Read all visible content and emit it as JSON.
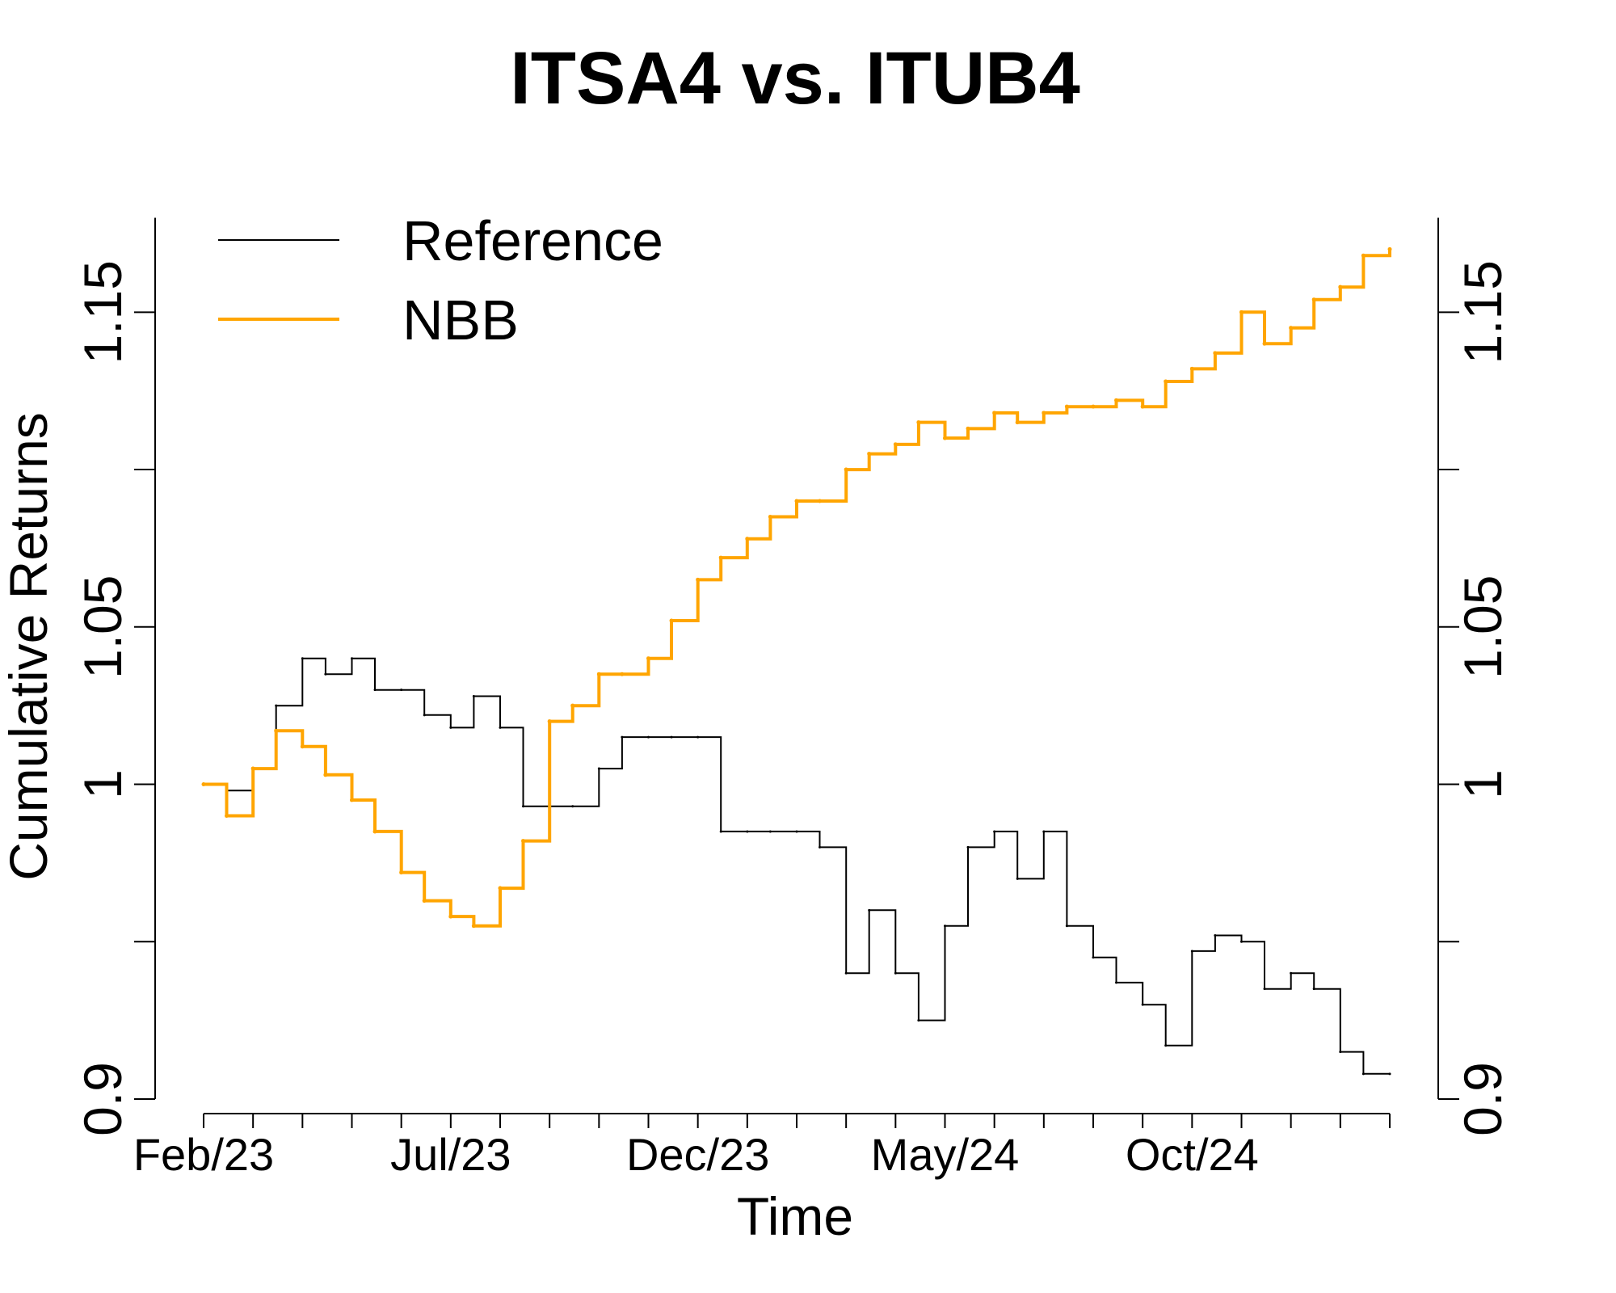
{
  "chart_data": {
    "type": "line",
    "title": "ITSA4 vs. ITUB4",
    "xlabel": "Time",
    "ylabel": "Cumulative Returns",
    "ylim": [
      0.9,
      1.185
    ],
    "y_ticks": [
      "0.9",
      "1",
      "1.05",
      "1.15"
    ],
    "y_tick_values": [
      0.9,
      1.0,
      1.05,
      1.15
    ],
    "y_minor_tick_values": [
      0.95,
      1.1
    ],
    "x_tick_labels": [
      "Feb/23",
      "Jul/23",
      "Dec/23",
      "May/24",
      "Oct/24"
    ],
    "x_tick_label_dates": [
      "2023-02",
      "2023-07",
      "2023-12",
      "2024-05",
      "2024-10"
    ],
    "x_tick_marks": [
      "2023-02",
      "2023-03",
      "2023-04",
      "2023-05",
      "2023-06",
      "2023-07",
      "2023-08",
      "2023-09",
      "2023-10",
      "2023-11",
      "2023-12",
      "2024-01",
      "2024-02",
      "2024-03",
      "2024-04",
      "2024-05",
      "2024-06",
      "2024-07",
      "2024-08",
      "2024-09",
      "2024-10",
      "2024-11",
      "2024-12",
      "2025-01",
      "2025-02"
    ],
    "legend": {
      "position": "top-left",
      "entries": [
        "Reference",
        "NBB"
      ]
    },
    "grid": false,
    "series": [
      {
        "name": "Reference",
        "color": "#000000",
        "x": [
          "2023-02",
          "2023-02-15",
          "2023-03",
          "2023-03-15",
          "2023-04",
          "2023-04-15",
          "2023-05",
          "2023-05-15",
          "2023-06",
          "2023-06-15",
          "2023-07",
          "2023-07-15",
          "2023-08",
          "2023-08-15",
          "2023-09",
          "2023-09-15",
          "2023-10",
          "2023-10-15",
          "2023-11",
          "2023-11-15",
          "2023-12",
          "2023-12-15",
          "2024-01",
          "2024-01-15",
          "2024-02",
          "2024-02-15",
          "2024-03",
          "2024-03-15",
          "2024-04",
          "2024-04-15",
          "2024-05",
          "2024-05-15",
          "2024-06",
          "2024-06-15",
          "2024-07",
          "2024-07-15",
          "2024-08",
          "2024-08-15",
          "2024-09",
          "2024-09-15",
          "2024-10",
          "2024-10-15",
          "2024-11",
          "2024-11-15",
          "2024-12",
          "2024-12-15",
          "2025-01",
          "2025-01-15",
          "2025-02"
        ],
        "values": [
          1.0,
          0.998,
          1.005,
          1.025,
          1.04,
          1.035,
          1.04,
          1.03,
          1.03,
          1.022,
          1.018,
          1.028,
          1.018,
          0.993,
          0.993,
          0.993,
          1.005,
          1.015,
          1.015,
          1.015,
          1.015,
          0.985,
          0.985,
          0.985,
          0.985,
          0.98,
          0.94,
          0.96,
          0.94,
          0.925,
          0.955,
          0.98,
          0.985,
          0.97,
          0.985,
          0.955,
          0.945,
          0.937,
          0.93,
          0.917,
          0.947,
          0.952,
          0.95,
          0.935,
          0.94,
          0.935,
          0.915,
          0.908,
          0.908
        ]
      },
      {
        "name": "NBB",
        "color": "#FFA500",
        "x": [
          "2023-02",
          "2023-02-15",
          "2023-03",
          "2023-03-15",
          "2023-04",
          "2023-04-15",
          "2023-05",
          "2023-05-15",
          "2023-06",
          "2023-06-15",
          "2023-07",
          "2023-07-15",
          "2023-08",
          "2023-08-15",
          "2023-09",
          "2023-09-15",
          "2023-10",
          "2023-10-15",
          "2023-11",
          "2023-11-15",
          "2023-12",
          "2023-12-15",
          "2024-01",
          "2024-01-15",
          "2024-02",
          "2024-02-15",
          "2024-03",
          "2024-03-15",
          "2024-04",
          "2024-04-15",
          "2024-05",
          "2024-05-15",
          "2024-06",
          "2024-06-15",
          "2024-07",
          "2024-07-15",
          "2024-08",
          "2024-08-15",
          "2024-09",
          "2024-09-15",
          "2024-10",
          "2024-10-15",
          "2024-11",
          "2024-11-15",
          "2024-12",
          "2024-12-15",
          "2025-01",
          "2025-01-15",
          "2025-02"
        ],
        "values": [
          1.0,
          0.99,
          1.005,
          1.017,
          1.012,
          1.003,
          0.995,
          0.985,
          0.972,
          0.963,
          0.958,
          0.955,
          0.967,
          0.982,
          1.02,
          1.025,
          1.035,
          1.035,
          1.04,
          1.052,
          1.065,
          1.072,
          1.078,
          1.085,
          1.09,
          1.09,
          1.1,
          1.105,
          1.108,
          1.115,
          1.11,
          1.113,
          1.118,
          1.115,
          1.118,
          1.12,
          1.12,
          1.122,
          1.12,
          1.128,
          1.132,
          1.137,
          1.15,
          1.14,
          1.145,
          1.154,
          1.158,
          1.168,
          1.17
        ]
      }
    ]
  }
}
